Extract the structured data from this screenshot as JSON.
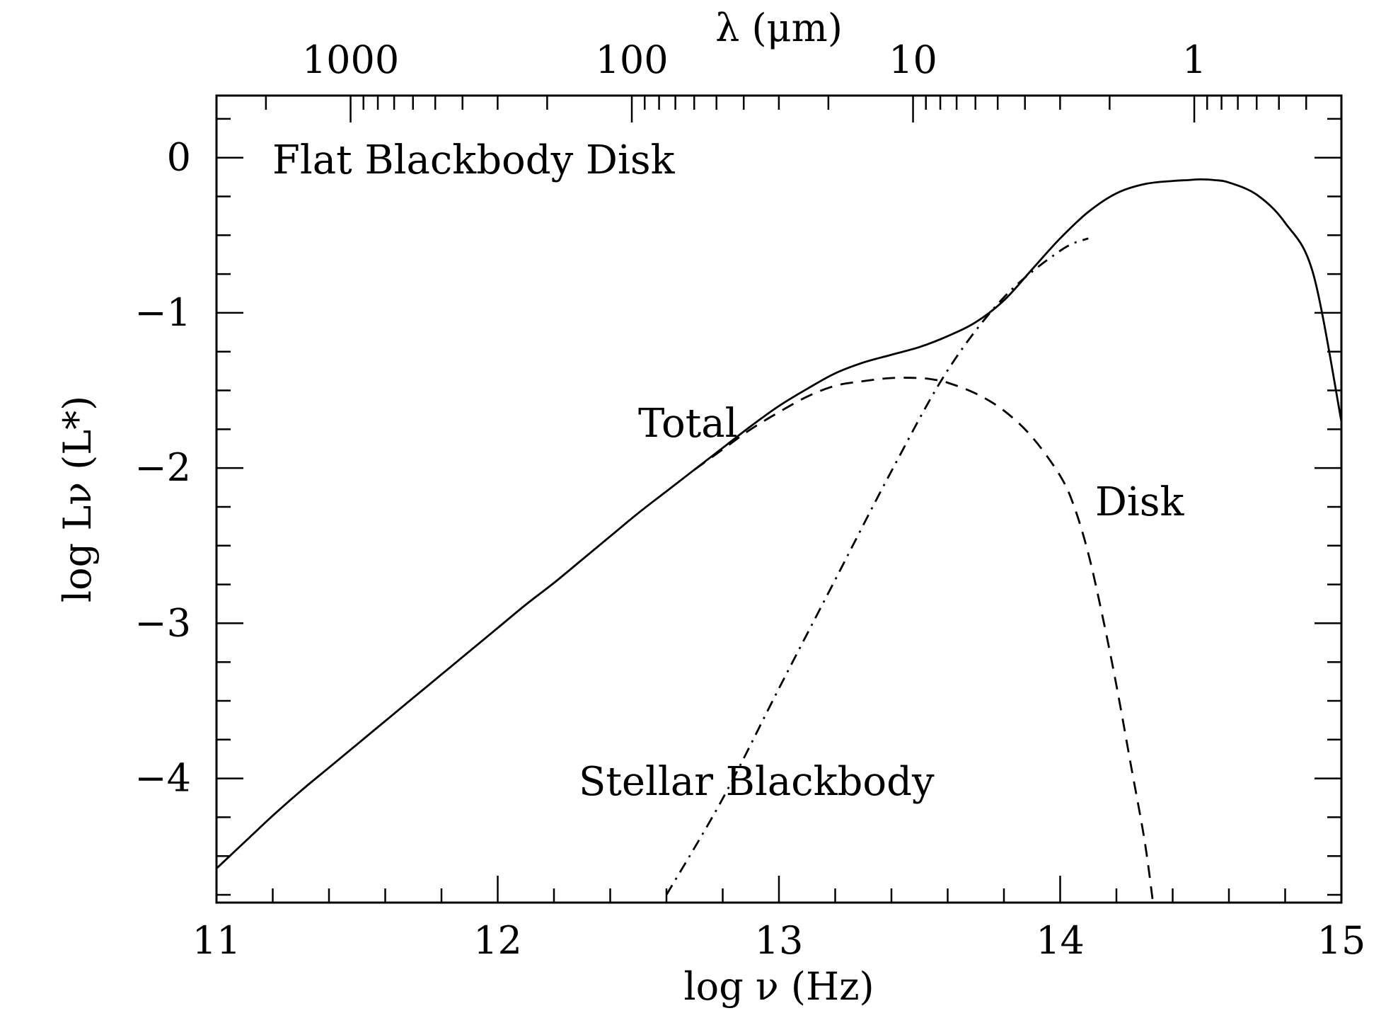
{
  "chart_data": {
    "type": "line",
    "title": "",
    "xlabel": "log ν (Hz)",
    "ylabel": "log Lν (L*)",
    "top_xlabel": "λ (μm)",
    "xlim": [
      11,
      15
    ],
    "ylim": [
      -4.8,
      0.4
    ],
    "x_ticks": [
      "11",
      "12",
      "13",
      "14",
      "15"
    ],
    "y_ticks": [
      "0",
      "−1",
      "−2",
      "−3",
      "−4"
    ],
    "top_ticks": [
      "1000",
      "100",
      "10",
      "1"
    ],
    "grid": false,
    "legend": "none",
    "series": [
      {
        "name": "Total",
        "style": "solid",
        "x": [
          11.0,
          11.1,
          11.2,
          11.3,
          11.4,
          11.5,
          11.6,
          11.7,
          11.8,
          11.9,
          12.0,
          12.1,
          12.2,
          12.3,
          12.4,
          12.5,
          12.6,
          12.7,
          12.8,
          12.9,
          13.0,
          13.1,
          13.2,
          13.3,
          13.4,
          13.5,
          13.6,
          13.7,
          13.8,
          13.9,
          14.0,
          14.1,
          14.2,
          14.3,
          14.4,
          14.45,
          14.5,
          14.55,
          14.6,
          14.7,
          14.8,
          14.9,
          15.0
        ],
        "y": [
          -4.58,
          -4.41,
          -4.24,
          -4.08,
          -3.93,
          -3.78,
          -3.63,
          -3.48,
          -3.33,
          -3.18,
          -3.03,
          -2.88,
          -2.74,
          -2.59,
          -2.44,
          -2.29,
          -2.15,
          -2.01,
          -1.87,
          -1.73,
          -1.6,
          -1.49,
          -1.39,
          -1.32,
          -1.27,
          -1.22,
          -1.15,
          -1.06,
          -0.92,
          -0.72,
          -0.52,
          -0.35,
          -0.23,
          -0.17,
          -0.15,
          -0.145,
          -0.14,
          -0.145,
          -0.16,
          -0.24,
          -0.42,
          -0.75,
          -1.7
        ]
      },
      {
        "name": "Disk",
        "style": "dashed",
        "x": [
          12.7,
          12.8,
          12.9,
          13.0,
          13.1,
          13.2,
          13.3,
          13.4,
          13.5,
          13.55,
          13.6,
          13.7,
          13.8,
          13.9,
          14.0,
          14.05,
          14.1,
          14.15,
          14.2,
          14.25,
          14.3,
          14.33
        ],
        "y": [
          -2.01,
          -1.88,
          -1.75,
          -1.64,
          -1.54,
          -1.47,
          -1.44,
          -1.42,
          -1.42,
          -1.43,
          -1.45,
          -1.52,
          -1.63,
          -1.8,
          -2.05,
          -2.25,
          -2.55,
          -2.95,
          -3.4,
          -3.9,
          -4.4,
          -4.8
        ]
      },
      {
        "name": "Stellar Blackbody",
        "style": "dash-dot",
        "x": [
          12.6,
          12.8,
          13.0,
          13.2,
          13.4,
          13.6,
          13.8,
          14.0,
          14.1
        ],
        "y": [
          -4.75,
          -4.13,
          -3.42,
          -2.72,
          -2.02,
          -1.37,
          -0.9,
          -0.6,
          -0.52
        ]
      }
    ],
    "annotations": [
      "Flat Blackbody Disk",
      "Total",
      "Disk",
      "Stellar Blackbody"
    ]
  }
}
